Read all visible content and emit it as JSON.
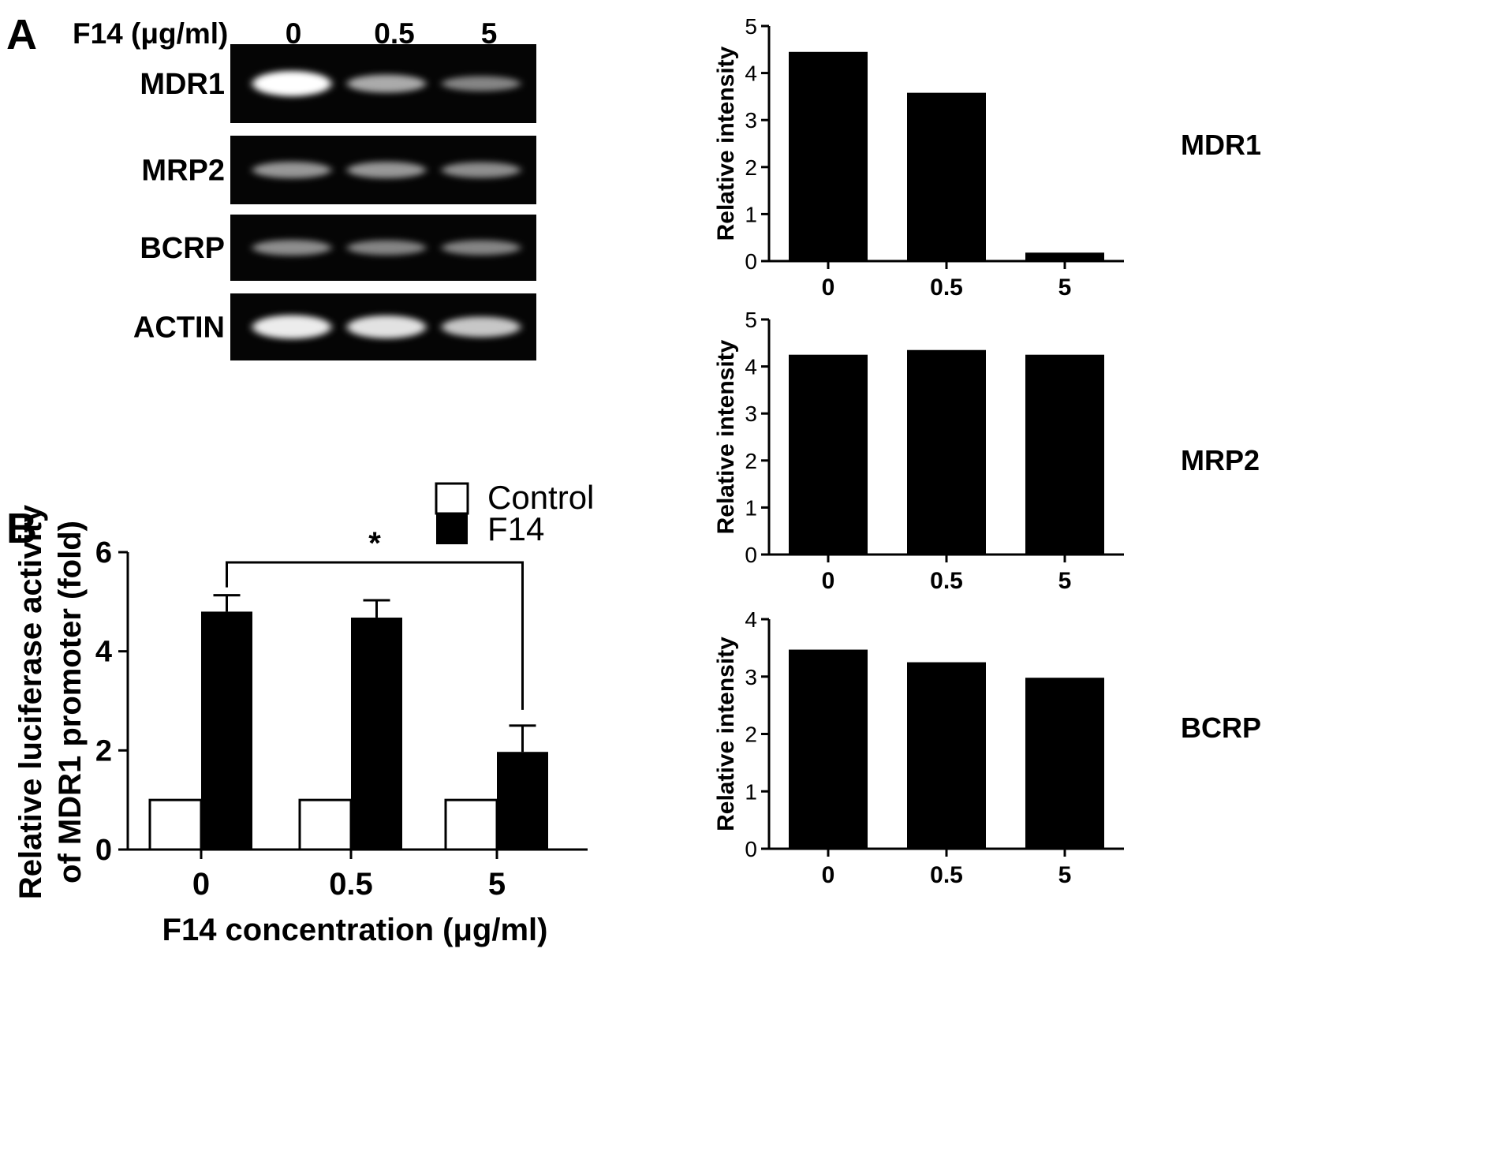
{
  "panel_a": {
    "label": "A",
    "header": "F14 (μg/ml)",
    "lanes": [
      "0",
      "0.5",
      "5"
    ],
    "gels": [
      {
        "label": "MDR1",
        "band_intensity": [
          1.0,
          0.55,
          0.35
        ]
      },
      {
        "label": "MRP2",
        "band_intensity": [
          0.45,
          0.45,
          0.4
        ]
      },
      {
        "label": "BCRP",
        "band_intensity": [
          0.4,
          0.35,
          0.35
        ]
      },
      {
        "label": "ACTIN",
        "band_intensity": [
          0.9,
          0.85,
          0.7
        ]
      }
    ]
  },
  "panel_b": {
    "label": "B"
  },
  "colors": {
    "bar": "#000000",
    "control_fill": "#ffffff",
    "gel_bg": "#050505",
    "band": "#ffffff"
  },
  "chart_data": [
    {
      "type": "bar",
      "side_label": "MDR1",
      "categories": [
        "0",
        "0.5",
        "5"
      ],
      "values": [
        4.45,
        3.58,
        0.18
      ],
      "ylabel": "Relative  intensity",
      "ylim": [
        0,
        5
      ],
      "yticks": [
        "0",
        "1",
        "2",
        "3",
        "4",
        "5"
      ]
    },
    {
      "type": "bar",
      "side_label": "MRP2",
      "categories": [
        "0",
        "0.5",
        "5"
      ],
      "values": [
        4.25,
        4.35,
        4.25
      ],
      "ylabel": "Relative  intensity",
      "ylim": [
        0,
        5
      ],
      "yticks": [
        "0",
        "1",
        "2",
        "3",
        "4",
        "5"
      ]
    },
    {
      "type": "bar",
      "side_label": "BCRP",
      "categories": [
        "0",
        "0.5",
        "5"
      ],
      "values": [
        3.47,
        3.25,
        2.98
      ],
      "ylabel": "Relative  intensity",
      "ylim": [
        0,
        4
      ],
      "yticks": [
        "0",
        "1",
        "2",
        "3",
        "4"
      ]
    },
    {
      "type": "bar",
      "categories": [
        "0",
        "0.5",
        "5"
      ],
      "series": [
        {
          "name": "Control",
          "values": [
            1,
            1,
            1
          ]
        },
        {
          "name": "F14",
          "values": [
            4.8,
            4.68,
            1.97
          ],
          "error": [
            0.33,
            0.35,
            0.53
          ]
        }
      ],
      "xlabel": "F14 concentration (μg/ml)",
      "ylabel_lines": [
        "Relative luciferase activity",
        "of MDR1 promoter (fold)"
      ],
      "ylim": [
        0,
        6
      ],
      "yticks": [
        "0",
        "2",
        "4",
        "6"
      ],
      "legend": "top-right",
      "annotation": "*"
    }
  ]
}
